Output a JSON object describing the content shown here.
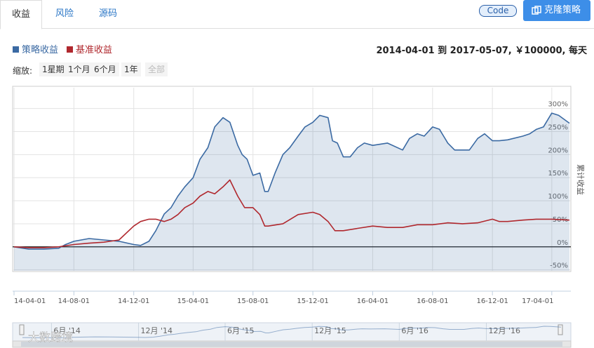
{
  "tabs": [
    "收益",
    "风险",
    "源码"
  ],
  "buttons": {
    "code": "Code",
    "clone": "克隆策略"
  },
  "summary": "2014-04-01 到 2017-05-07, ￥100000, 每天",
  "zoom": {
    "label": "缩放:",
    "options": [
      "1星期",
      "1个月",
      "6个月",
      "1年",
      "全部"
    ]
  },
  "watermark": "大数跨境",
  "chart_data": {
    "type": "line",
    "y_label": "累计收益",
    "grid": true,
    "xlim": [
      "14-04-01",
      "17-05-07"
    ],
    "xticks": [
      "14-04-01",
      "14-08-01",
      "14-12-01",
      "15-04-01",
      "15-08-01",
      "15-12-01",
      "16-04-01",
      "16-08-01",
      "16-12-01",
      "17-04-01"
    ],
    "ylim": [
      -52,
      345
    ],
    "yticks": [
      {
        "value": -50,
        "label": "-50%"
      },
      {
        "value": 0,
        "label": "0%"
      },
      {
        "value": 50,
        "label": "50%"
      },
      {
        "value": 100,
        "label": "100%"
      },
      {
        "value": 150,
        "label": "150%"
      },
      {
        "value": 200,
        "label": "200%"
      },
      {
        "value": 250,
        "label": "250%"
      },
      {
        "value": 300,
        "label": "300%"
      }
    ],
    "navigator_ticks": [
      {
        "value": "14-06-01",
        "label": "6月 '14"
      },
      {
        "value": "14-12-01",
        "label": "12月 '14"
      },
      {
        "value": "15-06-01",
        "label": "6月 '15"
      },
      {
        "value": "15-12-01",
        "label": "12月 '15"
      },
      {
        "value": "16-06-01",
        "label": "6月 '16"
      },
      {
        "value": "16-12-01",
        "label": "12月 '16"
      }
    ],
    "series": [
      {
        "name": "策略收益",
        "color": "#3b6aa3",
        "fill": true,
        "x": [
          "14-04-01",
          "14-05-01",
          "14-06-01",
          "14-07-01",
          "14-07-15",
          "14-08-01",
          "14-09-01",
          "14-10-01",
          "14-11-01",
          "14-12-01",
          "14-12-15",
          "15-01-01",
          "15-01-15",
          "15-02-01",
          "15-02-15",
          "15-03-01",
          "15-03-15",
          "15-04-01",
          "15-04-15",
          "15-05-01",
          "15-05-15",
          "15-06-01",
          "15-06-15",
          "15-07-01",
          "15-07-10",
          "15-07-20",
          "15-08-01",
          "15-08-15",
          "15-08-25",
          "15-09-01",
          "15-09-15",
          "15-10-01",
          "15-10-15",
          "15-11-01",
          "15-11-15",
          "15-12-01",
          "15-12-15",
          "16-01-01",
          "16-01-10",
          "16-01-20",
          "16-02-01",
          "16-02-15",
          "16-03-01",
          "16-03-15",
          "16-04-01",
          "16-05-01",
          "16-06-01",
          "16-06-15",
          "16-07-01",
          "16-07-15",
          "16-08-01",
          "16-08-15",
          "16-09-01",
          "16-09-15",
          "16-10-01",
          "16-10-15",
          "16-11-01",
          "16-11-15",
          "16-12-01",
          "16-12-15",
          "17-01-01",
          "17-02-01",
          "17-02-15",
          "17-03-01",
          "17-03-15",
          "17-04-01",
          "17-04-15",
          "17-05-07"
        ],
        "values": [
          0,
          -5,
          -5,
          -3,
          5,
          12,
          18,
          15,
          12,
          5,
          3,
          12,
          35,
          71,
          85,
          110,
          130,
          150,
          190,
          215,
          260,
          280,
          270,
          220,
          200,
          190,
          155,
          160,
          120,
          120,
          160,
          200,
          215,
          240,
          260,
          270,
          285,
          280,
          230,
          225,
          195,
          195,
          215,
          225,
          220,
          225,
          210,
          235,
          245,
          240,
          260,
          255,
          225,
          210,
          210,
          210,
          235,
          245,
          230,
          230,
          232,
          240,
          245,
          255,
          260,
          290,
          285,
          268
        ]
      },
      {
        "name": "基准收益",
        "color": "#b0282e",
        "fill": false,
        "x": [
          "14-04-01",
          "14-05-01",
          "14-06-01",
          "14-07-01",
          "14-08-01",
          "14-09-01",
          "14-10-01",
          "14-11-01",
          "14-12-01",
          "14-12-15",
          "15-01-01",
          "15-01-15",
          "15-02-01",
          "15-02-15",
          "15-03-01",
          "15-03-15",
          "15-04-01",
          "15-04-15",
          "15-05-01",
          "15-05-15",
          "15-06-01",
          "15-06-15",
          "15-07-01",
          "15-07-15",
          "15-08-01",
          "15-08-15",
          "15-08-25",
          "15-09-01",
          "15-10-01",
          "15-11-01",
          "15-12-01",
          "15-12-15",
          "16-01-01",
          "16-01-15",
          "16-02-01",
          "16-03-01",
          "16-04-01",
          "16-05-01",
          "16-06-01",
          "16-07-01",
          "16-08-01",
          "16-09-01",
          "16-10-01",
          "16-11-01",
          "16-12-01",
          "16-12-15",
          "17-01-01",
          "17-02-01",
          "17-03-01",
          "17-04-01",
          "17-05-07"
        ],
        "values": [
          0,
          -2,
          -2,
          0,
          5,
          8,
          10,
          15,
          45,
          55,
          60,
          60,
          55,
          60,
          70,
          85,
          95,
          110,
          120,
          115,
          130,
          145,
          110,
          85,
          85,
          70,
          45,
          45,
          50,
          70,
          75,
          70,
          55,
          35,
          35,
          40,
          45,
          42,
          42,
          48,
          48,
          52,
          50,
          52,
          60,
          55,
          55,
          58,
          60,
          60,
          58
        ]
      }
    ]
  }
}
